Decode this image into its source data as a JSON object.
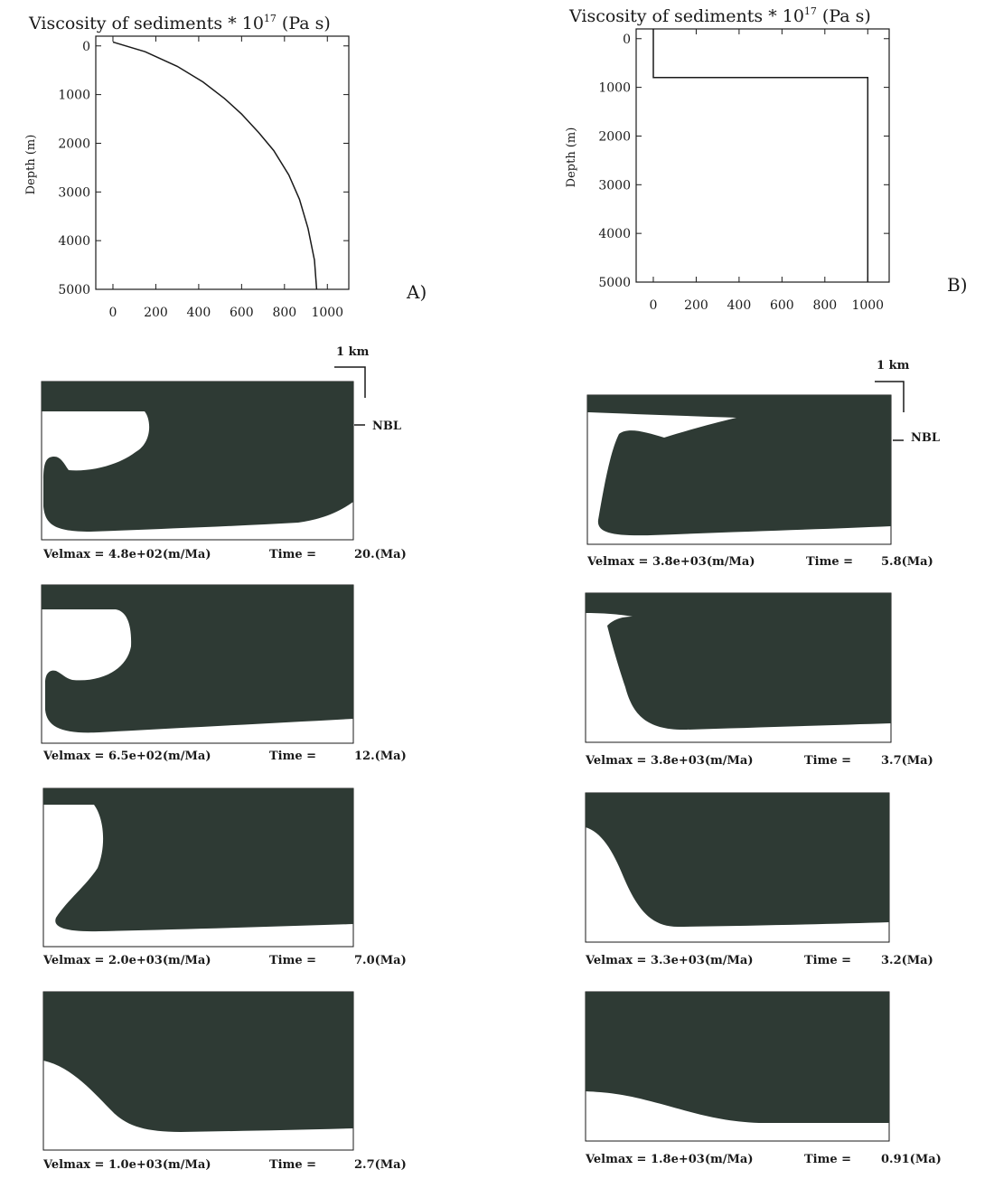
{
  "chart_data": [
    {
      "type": "line",
      "panel": "A)",
      "title_main": "Viscosity of sediments * 10",
      "title_exp": "17",
      "title_unit": "(Pa s)",
      "ylabel": "Depth (m)",
      "xlim": [
        -80,
        1100
      ],
      "ylim": [
        5000,
        -200
      ],
      "xticks": [
        "0",
        "200",
        "400",
        "600",
        "800",
        "1000"
      ],
      "xtick_values": [
        0,
        200,
        400,
        600,
        800,
        1000
      ],
      "yticks": [
        "0",
        "1000",
        "2000",
        "3000",
        "4000",
        "5000"
      ],
      "ytick_values": [
        0,
        1000,
        2000,
        3000,
        4000,
        5000
      ],
      "series": [
        {
          "x": [
            0,
            150,
            300,
            420,
            520,
            600,
            680,
            750,
            820,
            870,
            910,
            940,
            950
          ],
          "y": [
            -80,
            120,
            420,
            740,
            1080,
            1400,
            1780,
            2150,
            2650,
            3150,
            3750,
            4400,
            5000
          ]
        }
      ]
    },
    {
      "type": "line",
      "panel": "B)",
      "title_main": "Viscosity of sediments * 10",
      "title_exp": "17",
      "title_unit": "(Pa s)",
      "ylabel": "Depth (m)",
      "xlim": [
        -80,
        1100
      ],
      "ylim": [
        5000,
        -200
      ],
      "xticks": [
        "0",
        "200",
        "400",
        "600",
        "800",
        "1000"
      ],
      "xtick_values": [
        0,
        200,
        400,
        600,
        800,
        1000
      ],
      "yticks": [
        "0",
        "1000",
        "2000",
        "3000",
        "4000",
        "5000"
      ],
      "ytick_values": [
        0,
        1000,
        2000,
        3000,
        4000,
        5000
      ],
      "series": [
        {
          "x": [
            0,
            0,
            1000,
            1000
          ],
          "y": [
            -200,
            800,
            800,
            5000
          ]
        }
      ]
    }
  ],
  "scale_bar": "1 km",
  "nbl_label": "NBL",
  "snapshots": {
    "left": [
      {
        "velmax": "Velmax = 4.8e+02(m/Ma)",
        "time_label": "Time =",
        "time_value": "20.(Ma)"
      },
      {
        "velmax": "Velmax = 6.5e+02(m/Ma)",
        "time_label": "Time =",
        "time_value": "12.(Ma)"
      },
      {
        "velmax": "Velmax = 2.0e+03(m/Ma)",
        "time_label": "Time =",
        "time_value": "7.0(Ma)"
      },
      {
        "velmax": "Velmax = 1.0e+03(m/Ma)",
        "time_label": "Time =",
        "time_value": "2.7(Ma)"
      }
    ],
    "right": [
      {
        "velmax": "Velmax = 3.8e+03(m/Ma)",
        "time_label": "Time =",
        "time_value": "5.8(Ma)"
      },
      {
        "velmax": "Velmax = 3.8e+03(m/Ma)",
        "time_label": "Time =",
        "time_value": "3.7(Ma)"
      },
      {
        "velmax": "Velmax = 3.3e+03(m/Ma)",
        "time_label": "Time =",
        "time_value": "3.2(Ma)"
      },
      {
        "velmax": "Velmax = 1.8e+03(m/Ma)",
        "time_label": "Time =",
        "time_value": "0.91(Ma)"
      }
    ]
  },
  "colors": {
    "sediment": "#2e3a34",
    "ink": "#1a1a1a",
    "paper": "#ffffff"
  }
}
